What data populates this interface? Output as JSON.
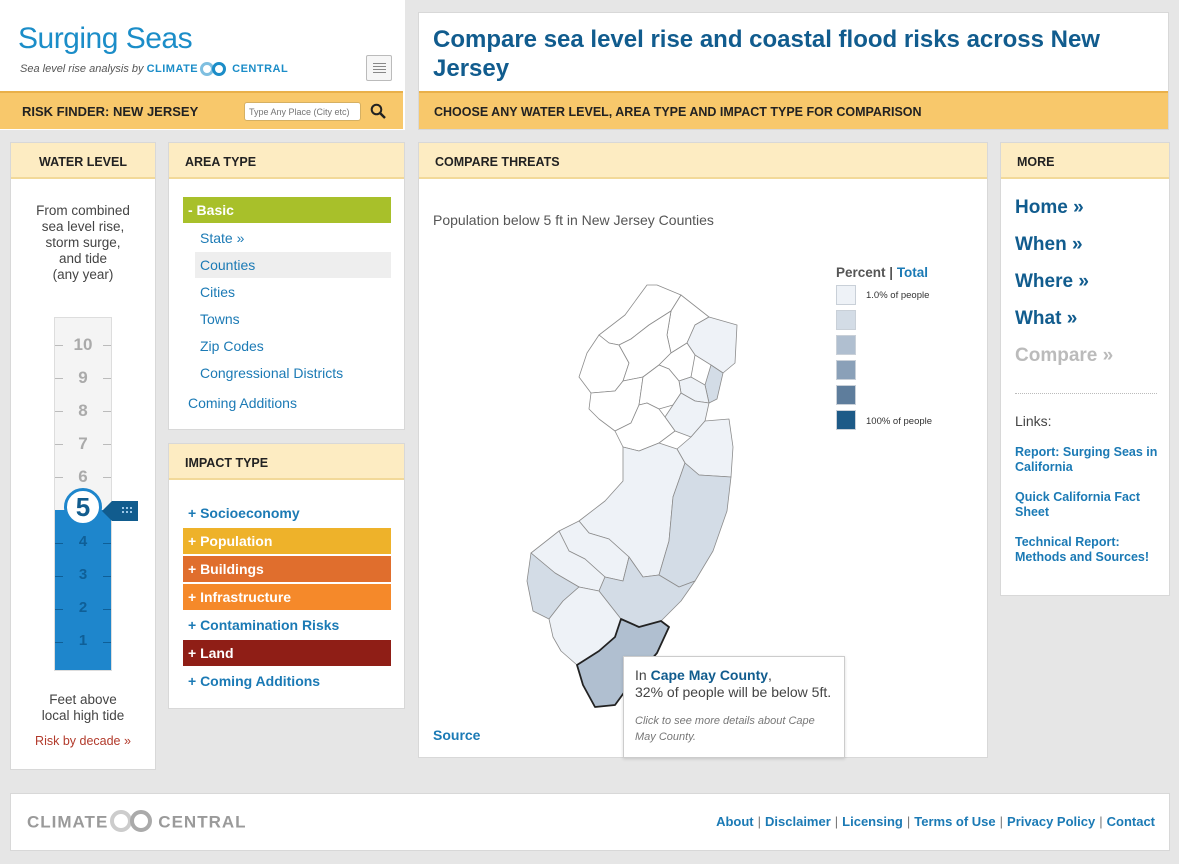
{
  "brand": {
    "title_a": "Surging",
    "title_b": " Seas",
    "subtitle": "Sea level rise analysis by",
    "org_a": "CLIMATE",
    "org_b": "CENTRAL",
    "menu_icon": "list-icon",
    "risk_finder_label": "RISK FINDER: NEW JERSEY",
    "search_placeholder": "Type Any Place (City etc)",
    "search_icon": "magnifier-icon"
  },
  "header": {
    "title": "Compare sea level rise and coastal flood risks across New Jersey",
    "bar_text": "CHOOSE ANY WATER LEVEL, AREA TYPE AND IMPACT TYPE FOR COMPARISON"
  },
  "water_level": {
    "heading": "WATER LEVEL",
    "description": [
      "From combined",
      "sea level rise,",
      "storm surge,",
      "and tide",
      "(any year)"
    ],
    "ticks": [
      "10",
      "9",
      "8",
      "7",
      "6",
      "5",
      "4",
      "3",
      "2",
      "1"
    ],
    "selected": "5",
    "handle_icon": "grip-icon",
    "footer": [
      "Feet above",
      "local high tide"
    ],
    "decade_link": "Risk by decade »"
  },
  "area_type": {
    "heading": "AREA TYPE",
    "group": "-  Basic",
    "items": [
      "State »",
      "Counties",
      "Cities",
      "Towns",
      "Zip Codes",
      "Congressional Districts"
    ],
    "selected": "Counties",
    "coming": "Coming Additions"
  },
  "impact_type": {
    "heading": "IMPACT TYPE",
    "items": [
      {
        "label": "+  Socioeconomy",
        "color": ""
      },
      {
        "label": "+  Population",
        "color": "#eeb22a"
      },
      {
        "label": "+  Buildings",
        "color": "#e06e2d"
      },
      {
        "label": "+  Infrastructure",
        "color": "#f5892a"
      },
      {
        "label": "+  Contamination Risks",
        "color": ""
      },
      {
        "label": "+  Land",
        "color": "#8f1e16"
      },
      {
        "label": "+  Coming Additions",
        "color": ""
      }
    ]
  },
  "compare": {
    "heading": "COMPARE THREATS",
    "map_title": "Population below 5 ft in New Jersey Counties",
    "legend_percent": "Percent",
    "legend_sep": " | ",
    "legend_total": "Total",
    "legend_colors": [
      "#eef2f7",
      "#d3dce6",
      "#b0bfd0",
      "#8aa0b8",
      "#5e7d9c",
      "#1d5a87"
    ],
    "legend_low": "1.0% of people",
    "legend_high": "100% of people",
    "source": "Source",
    "tooltip": {
      "prefix": "In ",
      "county": "Cape May County",
      "suffix": ",",
      "line2": "32% of people will be below 5ft.",
      "hint": "Click to see more details about Cape May County."
    }
  },
  "more": {
    "heading": "MORE",
    "nav": [
      "Home »",
      "When »",
      "Where »",
      "What »",
      "Compare »"
    ],
    "links_heading": "Links:",
    "links": [
      "Report: Surging Seas in California",
      "Quick California Fact Sheet",
      "Technical Report: Methods and Sources!"
    ]
  },
  "footer": {
    "logo_a": "CLIMATE",
    "logo_b": "CENTRAL",
    "links": [
      "About",
      "Disclaimer",
      "Licensing",
      "Terms of Use",
      "Privacy Policy",
      "Contact"
    ]
  }
}
